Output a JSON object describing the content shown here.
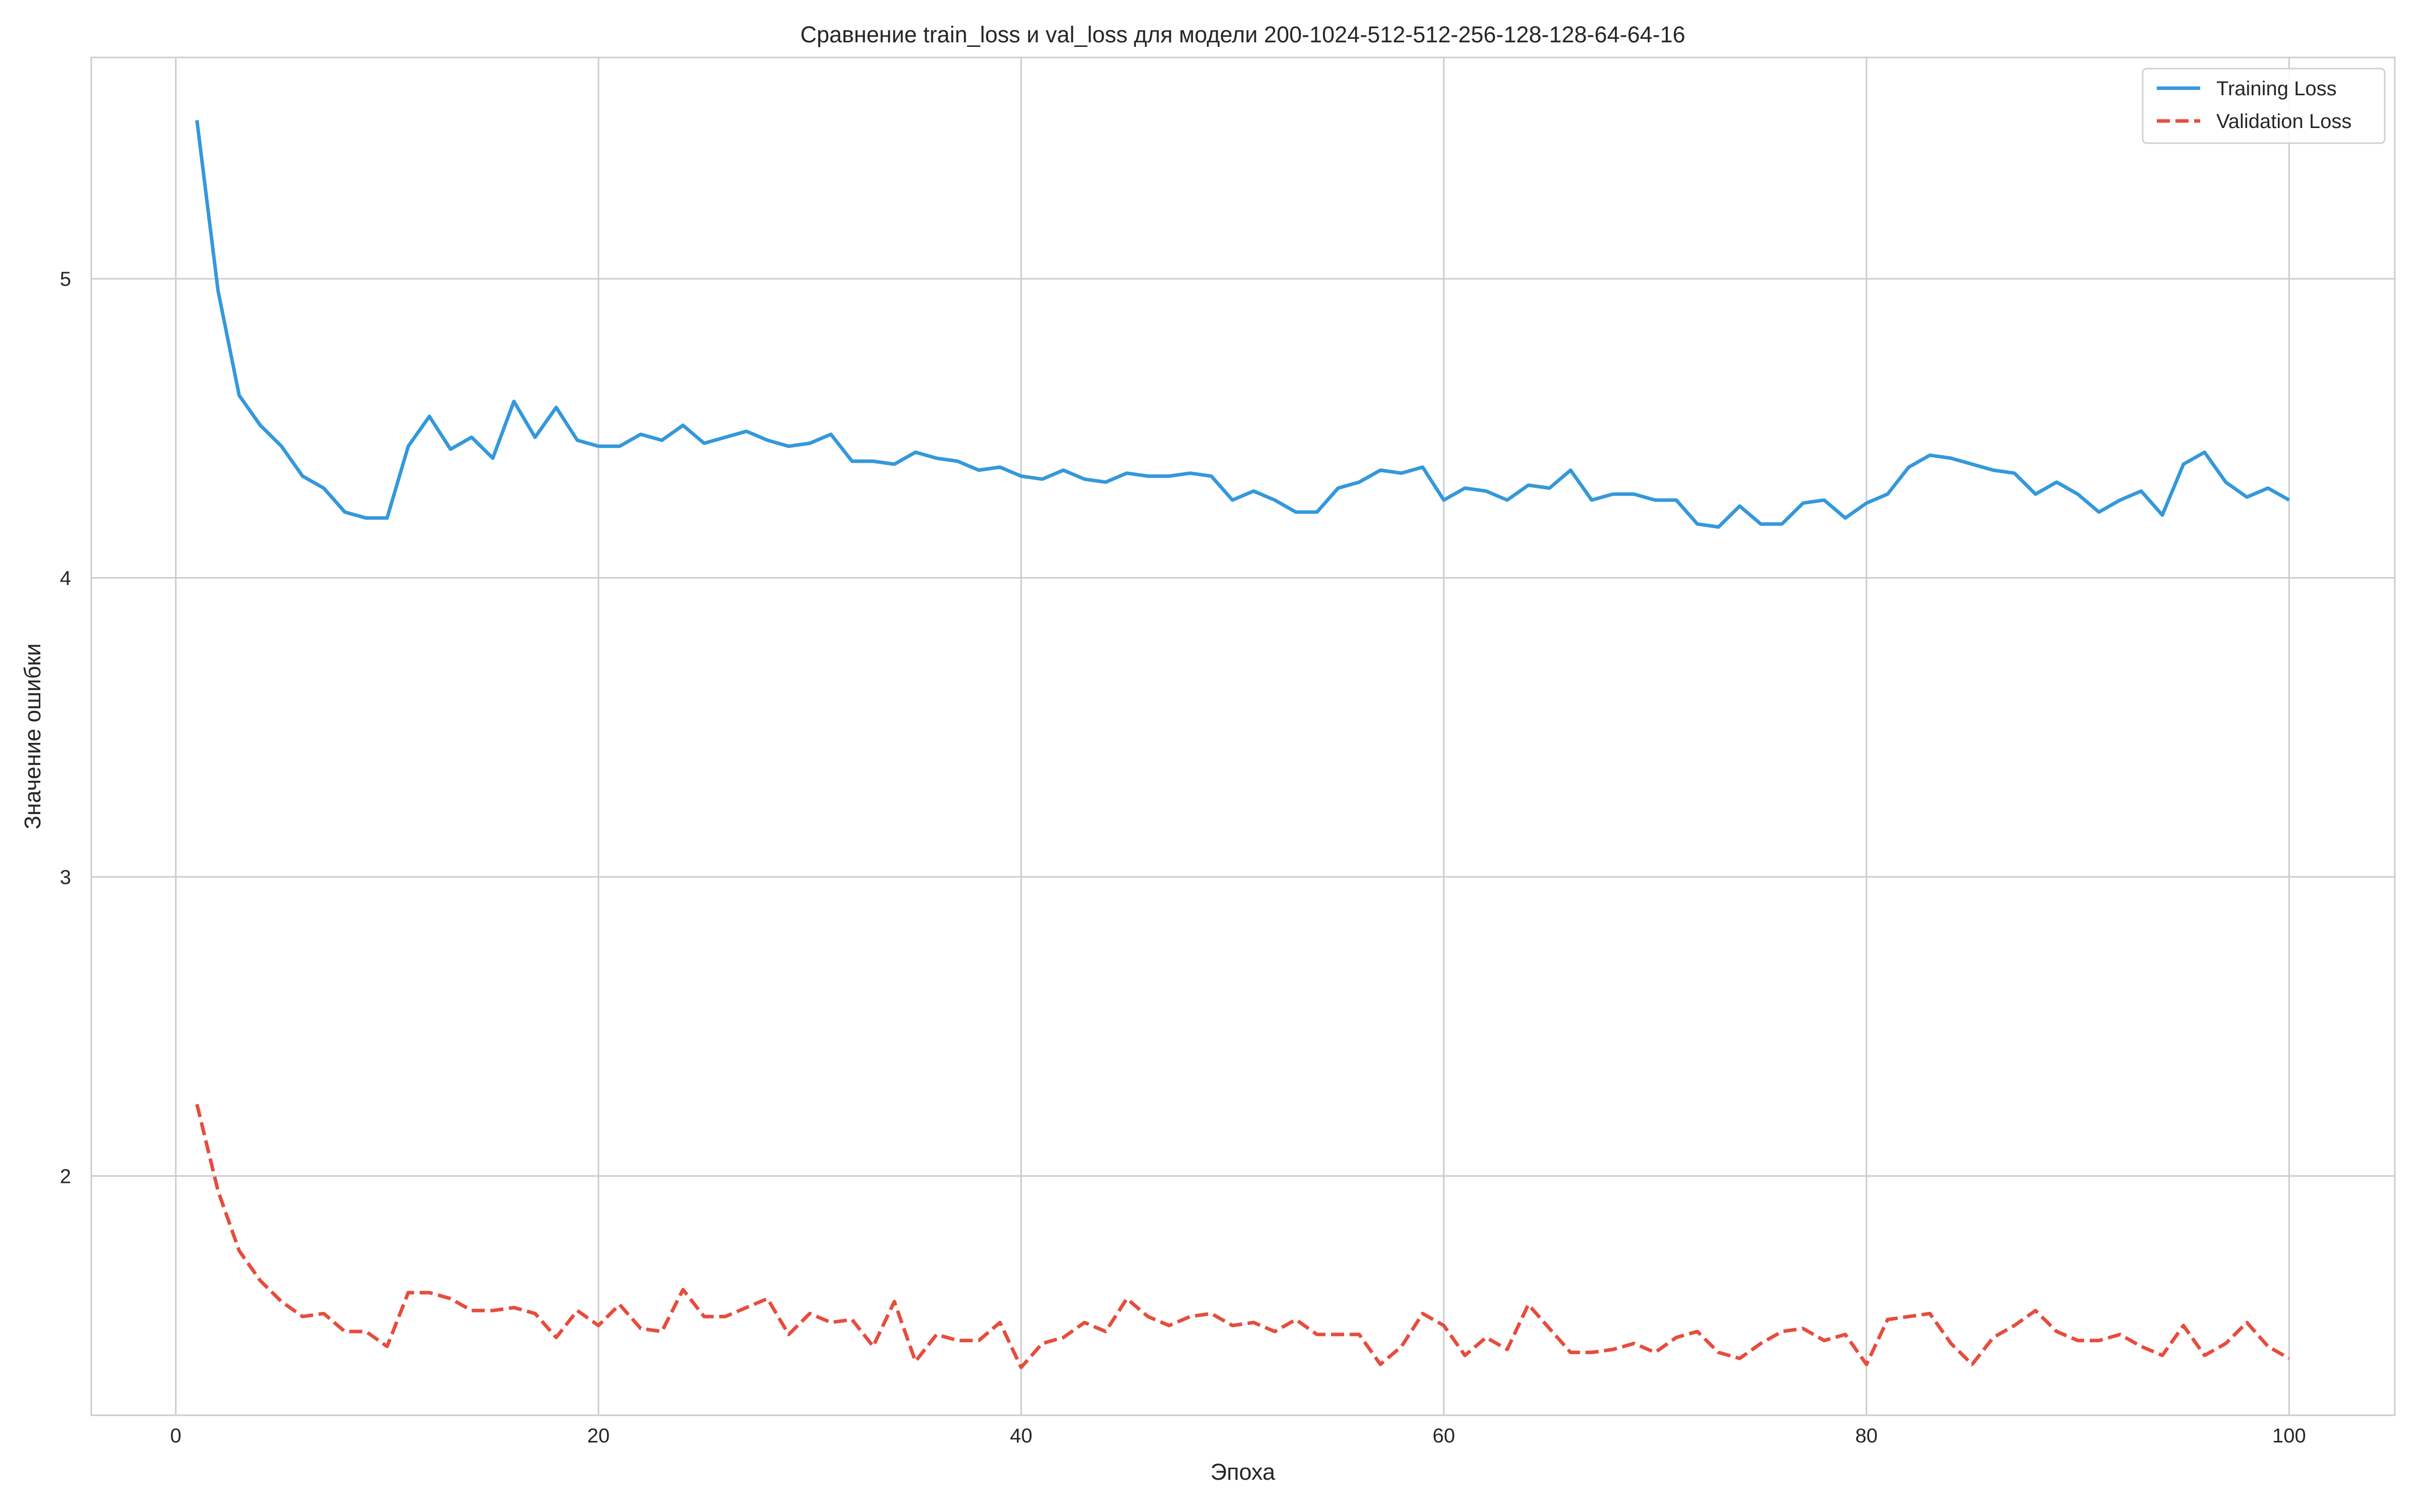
{
  "chart_data": {
    "type": "line",
    "title": "Сравнение train_loss и val_loss для модели 200-1024-512-512-256-128-128-64-64-16",
    "xlabel": "Эпоха",
    "ylabel": "Значение ошибки",
    "xlim": [
      -4,
      105
    ],
    "ylim": [
      1.2,
      5.74
    ],
    "xticks": [
      0,
      20,
      40,
      60,
      80,
      100
    ],
    "yticks": [
      2,
      3,
      4,
      5
    ],
    "grid": true,
    "legend_position": "top-right",
    "series": [
      {
        "name": "Training Loss",
        "color": "#3498db",
        "dash": "solid",
        "x": [
          1,
          2,
          3,
          4,
          5,
          6,
          7,
          8,
          9,
          10,
          11,
          12,
          13,
          14,
          15,
          16,
          17,
          18,
          19,
          20,
          21,
          22,
          23,
          24,
          25,
          26,
          27,
          28,
          29,
          30,
          31,
          32,
          33,
          34,
          35,
          36,
          37,
          38,
          39,
          40,
          41,
          42,
          43,
          44,
          45,
          46,
          47,
          48,
          49,
          50,
          51,
          52,
          53,
          54,
          55,
          56,
          57,
          58,
          59,
          60,
          61,
          62,
          63,
          64,
          65,
          66,
          67,
          68,
          69,
          70,
          71,
          72,
          73,
          74,
          75,
          76,
          77,
          78,
          79,
          80,
          81,
          82,
          83,
          84,
          85,
          86,
          87,
          88,
          89,
          90,
          91,
          92,
          93,
          94,
          95,
          96,
          97,
          98,
          99,
          100
        ],
        "values": [
          5.53,
          4.96,
          4.61,
          4.51,
          4.44,
          4.34,
          4.3,
          4.22,
          4.2,
          4.2,
          4.44,
          4.54,
          4.43,
          4.47,
          4.4,
          4.59,
          4.47,
          4.57,
          4.46,
          4.44,
          4.44,
          4.48,
          4.46,
          4.51,
          4.45,
          4.47,
          4.49,
          4.46,
          4.44,
          4.45,
          4.48,
          4.39,
          4.39,
          4.38,
          4.42,
          4.4,
          4.39,
          4.36,
          4.37,
          4.34,
          4.33,
          4.36,
          4.33,
          4.32,
          4.35,
          4.34,
          4.34,
          4.35,
          4.34,
          4.26,
          4.29,
          4.26,
          4.22,
          4.22,
          4.3,
          4.32,
          4.36,
          4.35,
          4.37,
          4.26,
          4.3,
          4.29,
          4.26,
          4.31,
          4.3,
          4.36,
          4.26,
          4.28,
          4.28,
          4.26,
          4.26,
          4.18,
          4.17,
          4.24,
          4.18,
          4.18,
          4.25,
          4.26,
          4.2,
          4.25,
          4.28,
          4.37,
          4.41,
          4.4,
          4.38,
          4.36,
          4.35,
          4.28,
          4.32,
          4.28,
          4.22,
          4.26,
          4.29,
          4.21,
          4.38,
          4.42,
          4.32,
          4.27,
          4.3,
          4.26
        ]
      },
      {
        "name": "Validation Loss",
        "color": "#e74c3c",
        "dash": "dashed",
        "x": [
          1,
          2,
          3,
          4,
          5,
          6,
          7,
          8,
          9,
          10,
          11,
          12,
          13,
          14,
          15,
          16,
          17,
          18,
          19,
          20,
          21,
          22,
          23,
          24,
          25,
          26,
          27,
          28,
          29,
          30,
          31,
          32,
          33,
          34,
          35,
          36,
          37,
          38,
          39,
          40,
          41,
          42,
          43,
          44,
          45,
          46,
          47,
          48,
          49,
          50,
          51,
          52,
          53,
          54,
          55,
          56,
          57,
          58,
          59,
          60,
          61,
          62,
          63,
          64,
          65,
          66,
          67,
          68,
          69,
          70,
          71,
          72,
          73,
          74,
          75,
          76,
          77,
          78,
          79,
          80,
          81,
          82,
          83,
          84,
          85,
          86,
          87,
          88,
          89,
          90,
          91,
          92,
          93,
          94,
          95,
          96,
          97,
          98,
          99,
          100
        ],
        "values": [
          2.24,
          1.95,
          1.75,
          1.65,
          1.58,
          1.53,
          1.54,
          1.48,
          1.48,
          1.43,
          1.61,
          1.61,
          1.59,
          1.55,
          1.55,
          1.56,
          1.54,
          1.46,
          1.55,
          1.5,
          1.57,
          1.49,
          1.48,
          1.62,
          1.53,
          1.53,
          1.56,
          1.59,
          1.47,
          1.54,
          1.51,
          1.52,
          1.43,
          1.58,
          1.38,
          1.47,
          1.45,
          1.45,
          1.51,
          1.36,
          1.44,
          1.46,
          1.51,
          1.48,
          1.59,
          1.53,
          1.5,
          1.53,
          1.54,
          1.5,
          1.51,
          1.48,
          1.52,
          1.47,
          1.47,
          1.47,
          1.37,
          1.43,
          1.54,
          1.5,
          1.4,
          1.46,
          1.42,
          1.57,
          1.49,
          1.41,
          1.41,
          1.42,
          1.44,
          1.41,
          1.46,
          1.48,
          1.41,
          1.39,
          1.44,
          1.48,
          1.49,
          1.45,
          1.47,
          1.37,
          1.52,
          1.53,
          1.54,
          1.44,
          1.37,
          1.46,
          1.5,
          1.55,
          1.48,
          1.45,
          1.45,
          1.47,
          1.43,
          1.4,
          1.5,
          1.4,
          1.44,
          1.51,
          1.43,
          1.39
        ]
      }
    ]
  }
}
